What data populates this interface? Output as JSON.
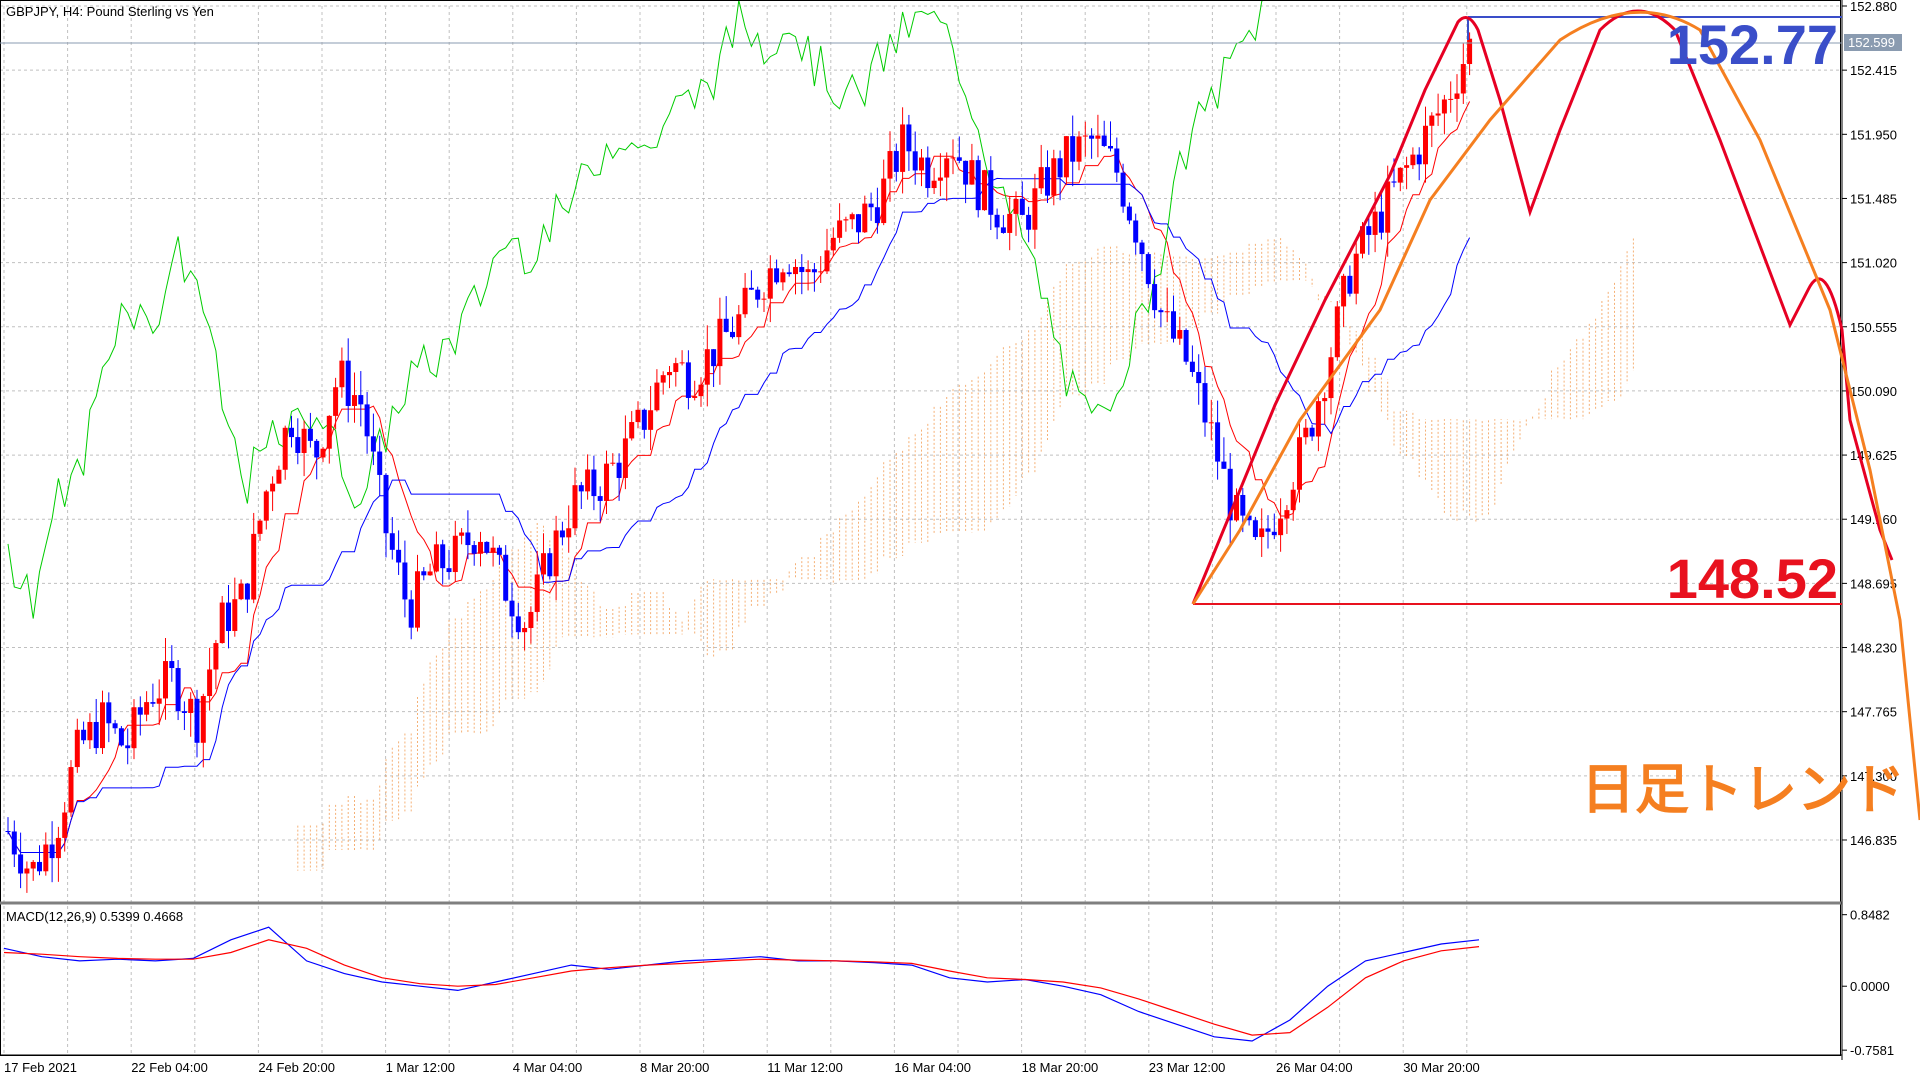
{
  "window": {
    "title": "GBPJPY, H4:  Pound Sterling vs Yen",
    "macd_label": "MACD(12,26,9) 0.5399 0.4668"
  },
  "colors": {
    "bull": "#ff0000",
    "bear": "#0000ff",
    "grid": "#c0c0c0",
    "tenkan": "#ff0000",
    "kijun": "#0000ff",
    "chikou": "#00cc00",
    "kumo": "#f4a460",
    "forecast_red": "#e60023",
    "forecast_orange": "#f57f20",
    "label_blue": "#3a4ec9",
    "label_red": "#e8111e"
  },
  "annotations": {
    "high_value": "152.77",
    "low_value": "148.52",
    "trend_text": "日足トレンド"
  },
  "chart_data": [
    {
      "type": "candlestick",
      "title": "GBPJPY, H4:  Pound Sterling vs Yen",
      "ylim": [
        146.4,
        152.88
      ],
      "y_ticks": [
        "152.880",
        "152.415",
        "151.950",
        "151.485",
        "151.020",
        "150.555",
        "150.090",
        "149.625",
        "149.160",
        "148.695",
        "148.230",
        "147.765",
        "147.300",
        "146.835"
      ],
      "current_price": "152.599",
      "x_ticks": [
        "17 Feb 2021",
        "22 Feb 04:00",
        "24 Feb 20:00",
        "1 Mar 12:00",
        "4 Mar 04:00",
        "8 Mar 20:00",
        "11 Mar 12:00",
        "16 Mar 04:00",
        "18 Mar 20:00",
        "23 Mar 12:00",
        "26 Mar 04:00",
        "30 Mar 20:00"
      ],
      "close_series_approx": [
        146.9,
        146.6,
        146.9,
        147.5,
        147.7,
        147.5,
        147.9,
        148.0,
        147.7,
        148.4,
        148.6,
        149.4,
        149.9,
        149.6,
        150.2,
        150.0,
        149.1,
        148.5,
        148.8,
        148.9,
        149.1,
        148.7,
        148.4,
        148.9,
        149.3,
        149.4,
        149.6,
        149.9,
        150.3,
        150.2,
        150.4,
        150.6,
        150.9,
        151.1,
        150.9,
        151.2,
        151.3,
        151.5,
        151.9,
        151.7,
        151.9,
        151.6,
        151.4,
        151.3,
        151.6,
        151.8,
        151.9,
        151.7,
        151.2,
        150.6,
        150.3,
        149.8,
        149.2,
        148.9,
        149.3,
        149.7,
        150.3,
        151.0,
        151.3,
        151.6,
        151.9,
        152.2,
        152.6
      ],
      "macd": {
        "label": "MACD(12,26,9) 0.5399 0.4668",
        "ylim": [
          -0.78,
          0.88
        ],
        "y_ticks": [
          "0.8482",
          "0.0000",
          "-0.7581"
        ],
        "macd_line_approx": [
          0.45,
          0.35,
          0.3,
          0.32,
          0.3,
          0.33,
          0.55,
          0.7,
          0.3,
          0.15,
          0.05,
          0.0,
          -0.05,
          0.05,
          0.15,
          0.25,
          0.2,
          0.25,
          0.3,
          0.32,
          0.35,
          0.3,
          0.3,
          0.28,
          0.25,
          0.1,
          0.05,
          0.08,
          0.0,
          -0.1,
          -0.3,
          -0.45,
          -0.6,
          -0.65,
          -0.4,
          0.0,
          0.3,
          0.4,
          0.5,
          0.55
        ],
        "signal_line_approx": [
          0.4,
          0.38,
          0.35,
          0.33,
          0.32,
          0.32,
          0.4,
          0.55,
          0.45,
          0.25,
          0.1,
          0.03,
          0.0,
          0.02,
          0.1,
          0.18,
          0.22,
          0.25,
          0.27,
          0.3,
          0.32,
          0.31,
          0.3,
          0.29,
          0.27,
          0.18,
          0.1,
          0.08,
          0.05,
          -0.02,
          -0.15,
          -0.3,
          -0.45,
          -0.58,
          -0.55,
          -0.25,
          0.1,
          0.3,
          0.42,
          0.47
        ]
      }
    }
  ]
}
